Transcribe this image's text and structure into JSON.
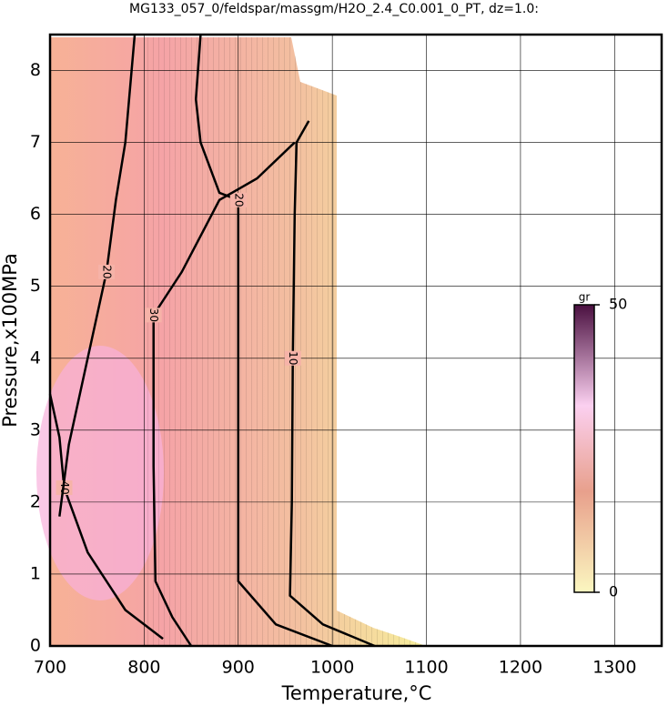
{
  "chart_data": {
    "type": "contour",
    "title": "MG133_057_0/feldspar/massgm/H2O_2.4_C0.001_0_PT, dz=1.0:",
    "x_label": "Temperature,°C",
    "y_label": "Pressure,x100MPa",
    "xlim": [
      700,
      1350
    ],
    "ylim": [
      0,
      8.5
    ],
    "xticks": [
      700,
      800,
      900,
      1000,
      1100,
      1200,
      1300
    ],
    "yticks": [
      0,
      1,
      2,
      3,
      4,
      5,
      6,
      7,
      8
    ],
    "grid": true,
    "contours": [
      {
        "level": 10,
        "x": [
          1045,
          990,
          955,
          957,
          958,
          960,
          962,
          975
        ],
        "y": [
          0,
          0.3,
          0.7,
          2,
          4,
          6,
          7,
          7.3
        ]
      },
      {
        "level": 20,
        "x": [
          1000,
          940,
          900,
          900,
          900,
          900,
          880,
          860,
          855,
          860
        ],
        "y": [
          0,
          0.3,
          0.9,
          3,
          5,
          6.2,
          6.3,
          7,
          7.6,
          8.5
        ]
      },
      {
        "level": 30,
        "x": [
          850,
          830,
          812,
          810,
          810,
          840,
          880,
          920,
          960
        ],
        "y": [
          0,
          0.4,
          0.9,
          2.5,
          4.6,
          5.2,
          6.2,
          6.5,
          7.0
        ]
      },
      {
        "level": 40,
        "x": [
          820,
          780,
          740,
          715,
          710,
          700
        ],
        "y": [
          0.1,
          0.5,
          1.3,
          2.2,
          2.9,
          3.5
        ]
      },
      {
        "level": 20,
        "x": [
          710,
          720,
          740,
          760,
          770,
          780,
          790
        ],
        "y": [
          1.8,
          2.8,
          4.0,
          5.2,
          6.2,
          7.0,
          8.5
        ]
      }
    ],
    "colorbar": {
      "label": "gr",
      "lim": [
        0,
        50
      ],
      "ticks": [
        0,
        50
      ]
    }
  }
}
